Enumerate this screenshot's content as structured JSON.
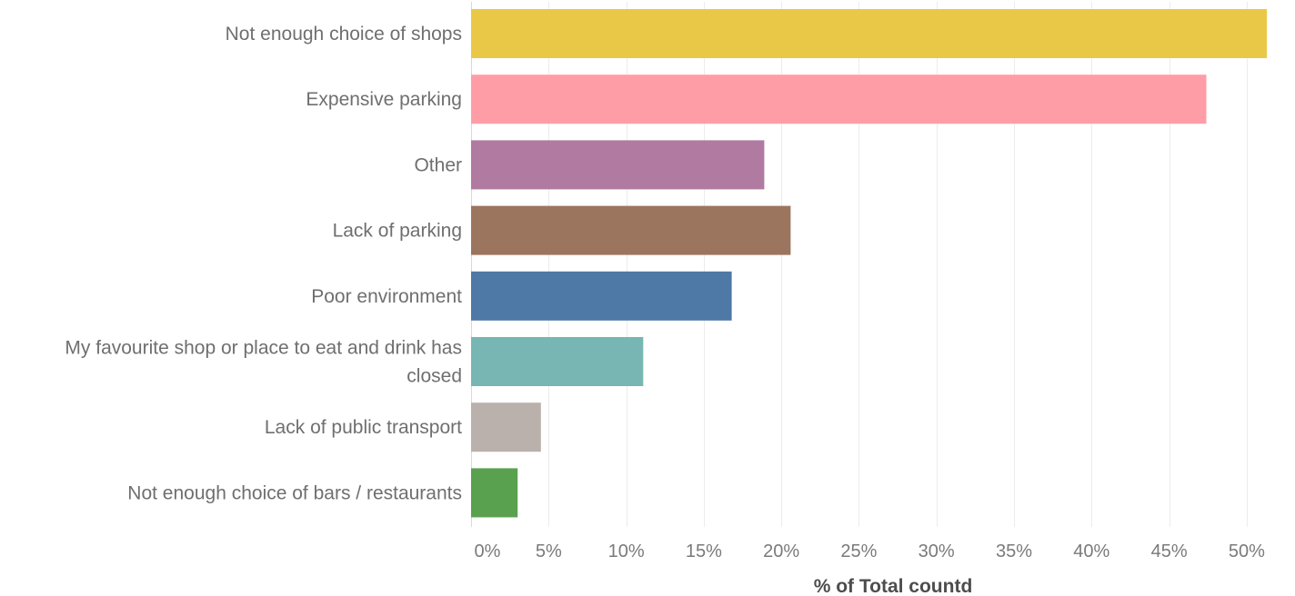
{
  "chart_data": {
    "type": "bar",
    "orientation": "horizontal",
    "categories": [
      "Not enough choice of shops",
      "Expensive parking",
      "Other",
      "Lack of parking",
      "Poor environment",
      "My favourite shop or place to eat and drink has closed",
      "Lack of public transport",
      "Not enough choice of bars / restaurants"
    ],
    "category_lines": [
      [
        "Not enough choice of shops"
      ],
      [
        "Expensive parking"
      ],
      [
        "Other"
      ],
      [
        "Lack of parking"
      ],
      [
        "Poor environment"
      ],
      [
        "My favourite shop or place to eat and drink has",
        "closed"
      ],
      [
        "Lack of public transport"
      ],
      [
        "Not enough choice of bars / restaurants"
      ]
    ],
    "values": [
      51.3,
      47.4,
      18.9,
      20.6,
      16.8,
      11.1,
      4.5,
      3.0
    ],
    "colors": [
      "#EAC847",
      "#FF9DA6",
      "#B07AA1",
      "#9C755F",
      "#4E78A6",
      "#77B6B2",
      "#BAB0AC",
      "#59A14F"
    ],
    "xlabel": "% of Total countd",
    "ylabel": "",
    "title": "",
    "xlim": [
      0,
      52
    ],
    "xticks": [
      0,
      5,
      10,
      15,
      20,
      25,
      30,
      35,
      40,
      45,
      50
    ],
    "xtick_labels": [
      "0%",
      "5%",
      "10%",
      "15%",
      "20%",
      "25%",
      "30%",
      "35%",
      "40%",
      "45%",
      "50%"
    ],
    "grid": "vertical",
    "legend": "none"
  }
}
